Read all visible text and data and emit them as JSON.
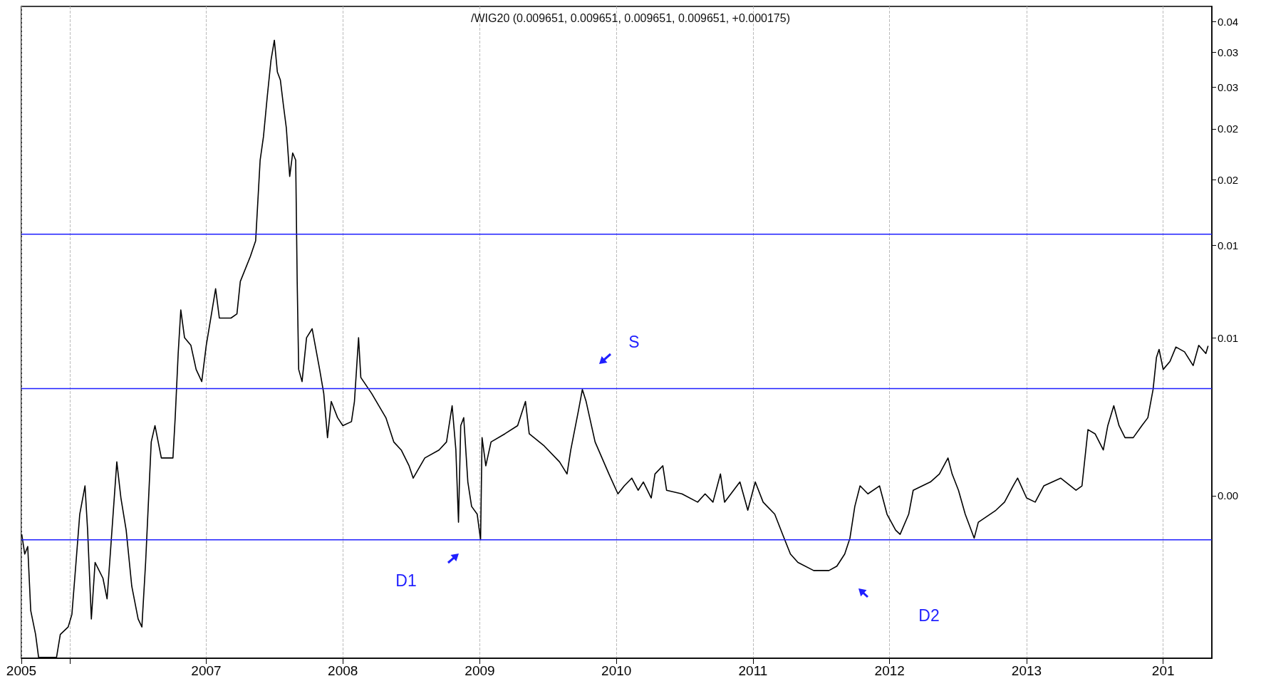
{
  "chart_data": {
    "type": "line",
    "title": "/WIG20 (0.009651, 0.009651, 0.009651, 0.009651, +0.000175)",
    "x": [
      "2005-08-26",
      "2005-09-03",
      "2005-09-11",
      "2005-09-19",
      "2005-10-02",
      "2005-10-10",
      "2005-11-27",
      "2005-12-07",
      "2005-12-28",
      "2006-01-07",
      "2006-01-18",
      "2006-01-28",
      "2006-02-11",
      "2006-02-18",
      "2006-02-28",
      "2006-03-10",
      "2006-03-31",
      "2006-04-11",
      "2006-04-21",
      "2006-05-07",
      "2006-05-18",
      "2006-06-01",
      "2006-06-16",
      "2006-07-03",
      "2006-07-13",
      "2006-07-23",
      "2006-08-07",
      "2006-08-17",
      "2006-09-03",
      "2006-10-04",
      "2006-10-10",
      "2006-10-18",
      "2006-10-25",
      "2006-11-04",
      "2006-11-21",
      "2006-12-05",
      "2006-12-20",
      "2007-01-01",
      "2007-01-15",
      "2007-01-26",
      "2007-02-05",
      "2007-03-08",
      "2007-03-24",
      "2007-04-02",
      "2007-04-29",
      "2007-05-13",
      "2007-05-25",
      "2007-06-03",
      "2007-06-13",
      "2007-06-23",
      "2007-07-02",
      "2007-07-10",
      "2007-07-18",
      "2007-07-26",
      "2007-08-03",
      "2007-08-12",
      "2007-08-20",
      "2007-08-28",
      "2007-09-01",
      "2007-09-05",
      "2007-09-14",
      "2007-09-26",
      "2007-10-11",
      "2007-10-31",
      "2007-11-11",
      "2007-11-21",
      "2007-12-01",
      "2007-12-18",
      "2008-01-01",
      "2008-01-24",
      "2008-02-01",
      "2008-02-12",
      "2008-02-18",
      "2008-03-18",
      "2008-04-25",
      "2008-05-16",
      "2008-06-05",
      "2008-06-26",
      "2008-07-07",
      "2008-08-07",
      "2008-09-14",
      "2008-10-04",
      "2008-10-19",
      "2008-10-29",
      "2008-11-05",
      "2008-11-11",
      "2008-11-19",
      "2008-11-30",
      "2008-12-10",
      "2008-12-25",
      "2009-01-03",
      "2009-01-07",
      "2009-01-17",
      "2009-01-31",
      "2009-03-09",
      "2009-04-12",
      "2009-05-03",
      "2009-05-13",
      "2009-06-22",
      "2009-08-02",
      "2009-08-22",
      "2009-09-01",
      "2009-09-22",
      "2009-10-02",
      "2009-10-12",
      "2009-11-05",
      "2009-12-12",
      "2010-01-05",
      "2010-01-22",
      "2010-02-11",
      "2010-02-28",
      "2010-03-14",
      "2010-04-04",
      "2010-04-14",
      "2010-05-05",
      "2010-05-15",
      "2010-06-25",
      "2010-08-06",
      "2010-08-26",
      "2010-09-16",
      "2010-10-06",
      "2010-10-17",
      "2010-11-27",
      "2010-12-18",
      "2011-01-07",
      "2011-01-28",
      "2011-02-28",
      "2011-03-21",
      "2011-04-11",
      "2011-05-01",
      "2011-06-12",
      "2011-07-23",
      "2011-08-13",
      "2011-09-03",
      "2011-09-17",
      "2011-09-30",
      "2011-10-14",
      "2011-11-04",
      "2011-12-05",
      "2011-12-25",
      "2012-01-17",
      "2012-01-29",
      "2012-02-21",
      "2012-03-04",
      "2012-04-19",
      "2012-05-13",
      "2012-06-05",
      "2012-06-16",
      "2012-07-03",
      "2012-07-21",
      "2012-08-14",
      "2012-08-25",
      "2012-10-11",
      "2012-11-03",
      "2012-11-26",
      "2012-12-08",
      "2013-01-01",
      "2013-01-24",
      "2013-02-16",
      "2013-04-02",
      "2013-05-13",
      "2013-05-29",
      "2013-06-14",
      "2013-07-03",
      "2013-07-25",
      "2013-08-06",
      "2013-08-22",
      "2013-09-05",
      "2013-09-21",
      "2013-10-13",
      "2013-11-05",
      "2013-11-21",
      "2013-12-05",
      "2013-12-14",
      "2013-12-21",
      "2014-01-01",
      "2014-01-19",
      "2014-02-04",
      "2014-02-27",
      "2014-03-22",
      "2014-04-06",
      "2014-04-25",
      "2014-05-01"
    ],
    "values": [
      0.00422,
      0.00387,
      0.004,
      0.00302,
      0.00272,
      0.00246,
      0.00246,
      0.00272,
      0.00281,
      0.00297,
      0.00373,
      0.00461,
      0.00522,
      0.0043,
      0.00291,
      0.00373,
      0.00348,
      0.00318,
      0.004,
      0.0058,
      0.00495,
      0.0043,
      0.00336,
      0.00291,
      0.00281,
      0.00373,
      0.00633,
      0.0068,
      0.0059,
      0.0059,
      0.00704,
      0.00933,
      0.0113,
      0.01,
      0.00967,
      0.0087,
      0.00825,
      0.00967,
      0.0111,
      0.0124,
      0.0109,
      0.0109,
      0.0111,
      0.0128,
      0.0143,
      0.0153,
      0.0218,
      0.0242,
      0.0288,
      0.0338,
      0.0369,
      0.0321,
      0.031,
      0.0278,
      0.0251,
      0.0203,
      0.0225,
      0.0218,
      0.0128,
      0.0087,
      0.00825,
      0.01,
      0.0104,
      0.0087,
      0.00783,
      0.00645,
      0.00756,
      0.00704,
      0.0068,
      0.00692,
      0.00756,
      0.01,
      0.0084,
      0.00783,
      0.00704,
      0.00633,
      0.00611,
      0.0057,
      0.0054,
      0.0059,
      0.00611,
      0.00633,
      0.00742,
      0.00611,
      0.00445,
      0.0068,
      0.00704,
      0.00531,
      0.00477,
      0.00461,
      0.00412,
      0.00645,
      0.0057,
      0.00633,
      0.00656,
      0.0068,
      0.00756,
      0.00656,
      0.00622,
      0.0058,
      0.0055,
      0.00611,
      0.00729,
      0.00797,
      0.00756,
      0.00633,
      0.0055,
      0.00504,
      0.00522,
      0.0054,
      0.00512,
      0.00531,
      0.00495,
      0.0055,
      0.0057,
      0.00512,
      0.00504,
      0.00486,
      0.00504,
      0.00486,
      0.0055,
      0.00486,
      0.00531,
      0.00469,
      0.00531,
      0.00486,
      0.00461,
      0.00422,
      0.00387,
      0.00373,
      0.0036,
      0.0036,
      0.00367,
      0.00387,
      0.00415,
      0.00477,
      0.00522,
      0.00504,
      0.00522,
      0.00461,
      0.0043,
      0.00422,
      0.00461,
      0.00512,
      0.00531,
      0.0055,
      0.0059,
      0.0055,
      0.00512,
      0.00461,
      0.00415,
      0.00445,
      0.00469,
      0.00486,
      0.00522,
      0.0054,
      0.00495,
      0.00486,
      0.00522,
      0.0054,
      0.00512,
      0.00522,
      0.00668,
      0.00656,
      0.00611,
      0.0068,
      0.00742,
      0.0068,
      0.00645,
      0.00645,
      0.0068,
      0.00704,
      0.00797,
      0.00917,
      0.0095,
      0.0087,
      0.00901,
      0.0096,
      0.0094,
      0.00885,
      0.00967,
      0.00933,
      0.00965
    ],
    "color": "#000000",
    "marker": "none",
    "log": "y",
    "grid": "x",
    "xlim": [
      "2005-08-25",
      "2014-05-11"
    ],
    "xticks": [
      {
        "value": "2005-08-25",
        "label": "2005"
      },
      {
        "value": "2006",
        "label": null
      },
      {
        "value": "2007",
        "label": "2007"
      },
      {
        "value": "2008",
        "label": "2008"
      },
      {
        "value": "2009",
        "label": "2009"
      },
      {
        "value": "2010",
        "label": "2010"
      },
      {
        "value": "2011",
        "label": "2011"
      },
      {
        "value": "2012",
        "label": "2012"
      },
      {
        "value": "2013",
        "label": "2013"
      },
      {
        "value": "2014",
        "label": "201"
      }
    ],
    "ylim": [
      0.00245,
      0.0428
    ],
    "yticks": [
      {
        "value": 0.005,
        "label": "0.00"
      },
      {
        "value": 0.01,
        "label": "0.01"
      },
      {
        "value": 0.015,
        "label": "0.01"
      },
      {
        "value": 0.02,
        "label": "0.02"
      },
      {
        "value": 0.025,
        "label": "0.02"
      },
      {
        "value": 0.03,
        "label": "0.03"
      },
      {
        "value": 0.035,
        "label": "0.03"
      },
      {
        "value": 0.04,
        "label": "0.04"
      }
    ],
    "ref_lines": [
      {
        "axis": "y",
        "value": 0.01575,
        "color": "#1f1fff"
      },
      {
        "axis": "y",
        "value": 0.008,
        "color": "#1f1fff"
      },
      {
        "axis": "y",
        "value": 0.00412,
        "color": "#1f1fff"
      }
    ],
    "annotations": [
      "S",
      "D1",
      "D2"
    ]
  }
}
